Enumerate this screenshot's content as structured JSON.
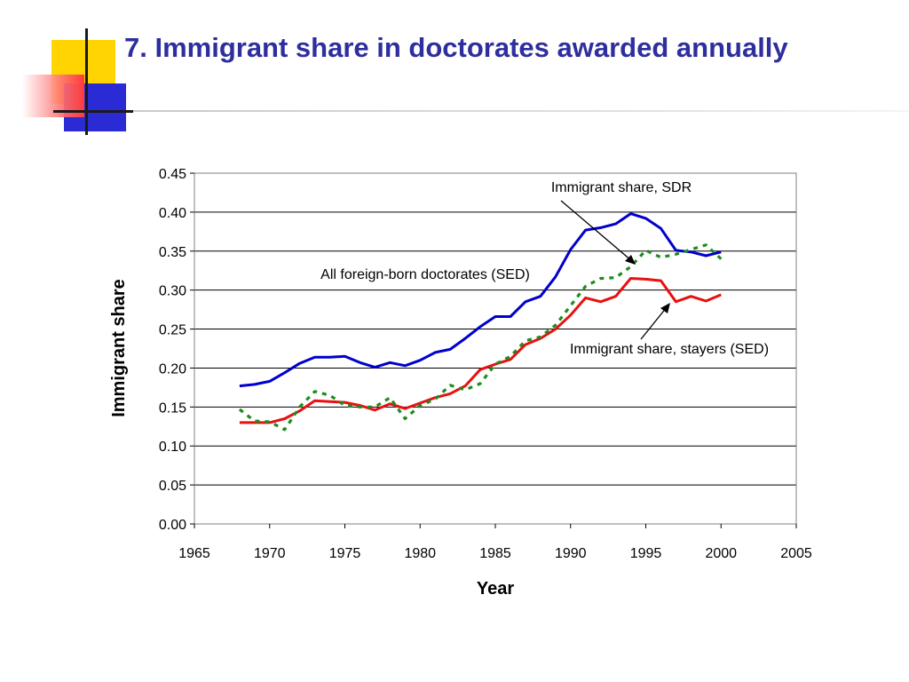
{
  "slide": {
    "title": "7. Immigrant share in doctorates awarded annually"
  },
  "chart_data": {
    "type": "line",
    "xlabel": "Year",
    "ylabel": "Immigrant share",
    "xlim": [
      1965,
      2005
    ],
    "ylim": [
      0.0,
      0.45
    ],
    "xticks": [
      "1965",
      "1970",
      "1975",
      "1980",
      "1985",
      "1990",
      "1995",
      "2000",
      "2005"
    ],
    "yticks": [
      "0.00",
      "0.05",
      "0.10",
      "0.15",
      "0.20",
      "0.25",
      "0.30",
      "0.35",
      "0.40",
      "0.45"
    ],
    "grid": "horizontal",
    "series": [
      {
        "name": "All foreign-born doctorates (SED)",
        "color": "#0000CC",
        "style": "solid",
        "x": [
          1968,
          1969,
          1970,
          1971,
          1972,
          1973,
          1974,
          1975,
          1976,
          1977,
          1978,
          1979,
          1980,
          1981,
          1982,
          1983,
          1984,
          1985,
          1986,
          1987,
          1988,
          1989,
          1990,
          1991,
          1992,
          1993,
          1994,
          1995,
          1996,
          1997,
          1998,
          1999,
          2000
        ],
        "y": [
          0.177,
          0.179,
          0.183,
          0.194,
          0.206,
          0.214,
          0.214,
          0.215,
          0.207,
          0.201,
          0.207,
          0.203,
          0.21,
          0.22,
          0.224,
          0.238,
          0.253,
          0.266,
          0.266,
          0.285,
          0.292,
          0.317,
          0.352,
          0.377,
          0.38,
          0.385,
          0.398,
          0.392,
          0.379,
          0.351,
          0.349,
          0.344,
          0.349
        ]
      },
      {
        "name": "Immigrant share, stayers (SED)",
        "color": "#E81010",
        "style": "solid",
        "x": [
          1968,
          1969,
          1970,
          1971,
          1972,
          1973,
          1974,
          1975,
          1976,
          1977,
          1978,
          1979,
          1980,
          1981,
          1982,
          1983,
          1984,
          1985,
          1986,
          1987,
          1988,
          1989,
          1990,
          1991,
          1992,
          1993,
          1994,
          1995,
          1996,
          1997,
          1998,
          1999,
          2000
        ],
        "y": [
          0.13,
          0.13,
          0.13,
          0.135,
          0.145,
          0.158,
          0.157,
          0.156,
          0.152,
          0.146,
          0.154,
          0.148,
          0.155,
          0.162,
          0.167,
          0.177,
          0.198,
          0.205,
          0.211,
          0.23,
          0.238,
          0.25,
          0.268,
          0.29,
          0.285,
          0.292,
          0.315,
          0.314,
          0.312,
          0.285,
          0.292,
          0.286,
          0.294
        ]
      },
      {
        "name": "Immigrant share, SDR",
        "color": "#1E8C1E",
        "style": "dotted",
        "x": [
          1968,
          1969,
          1970,
          1971,
          1972,
          1973,
          1974,
          1975,
          1976,
          1977,
          1978,
          1979,
          1980,
          1981,
          1982,
          1983,
          1984,
          1985,
          1986,
          1987,
          1988,
          1989,
          1990,
          1991,
          1992,
          1993,
          1994,
          1995,
          1996,
          1997,
          1998,
          1999,
          2000
        ],
        "y": [
          0.147,
          0.132,
          0.131,
          0.121,
          0.15,
          0.17,
          0.165,
          0.152,
          0.15,
          0.15,
          0.162,
          0.135,
          0.152,
          0.16,
          0.178,
          0.172,
          0.18,
          0.205,
          0.215,
          0.235,
          0.24,
          0.255,
          0.28,
          0.305,
          0.315,
          0.316,
          0.33,
          0.351,
          0.342,
          0.346,
          0.352,
          0.358,
          0.34
        ]
      }
    ],
    "annotations": [
      {
        "text": "Immigrant share, SDR"
      },
      {
        "text": "All foreign-born doctorates (SED)"
      },
      {
        "text": "Immigrant share, stayers (SED)"
      }
    ]
  }
}
